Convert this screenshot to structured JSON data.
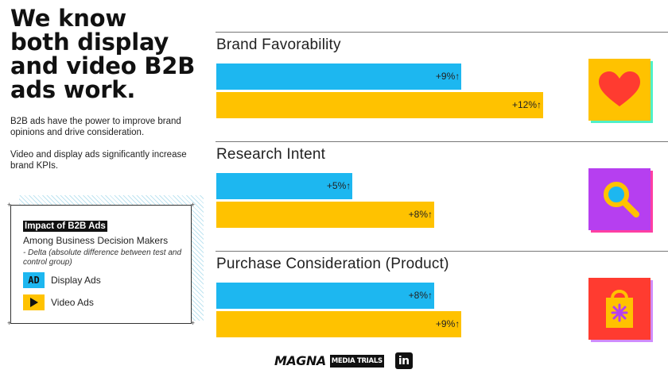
{
  "headline": {
    "lines": [
      "We know",
      "both display",
      "and video B2B",
      "ads work."
    ]
  },
  "body": {
    "p1": "B2B ads have the power to improve brand opinions and drive consideration.",
    "p2": "Video and display ads significantly increase brand KPIs."
  },
  "legend": {
    "title": "Impact of B2B Ads",
    "subtitle": "Among Business Decision Makers",
    "note": "- Delta (absolute difference between test and control group)",
    "display_badge": "AD",
    "display_label": "Display Ads",
    "video_label": "Video Ads"
  },
  "chart_data": {
    "type": "bar",
    "orientation": "horizontal",
    "unit": "%",
    "series_names": [
      "Display Ads",
      "Video Ads"
    ],
    "series_colors": [
      "#1db7f0",
      "#ffc200"
    ],
    "sections": [
      {
        "title": "Brand Favorability",
        "display": 9,
        "video": 12,
        "display_label": "+9%↑",
        "video_label": "+12%↑",
        "icon": "heart-icon",
        "tile_color": "#ffc200",
        "shadow_color": "#4ff0c8",
        "glyph_color": "#ff3b30"
      },
      {
        "title": "Research Intent",
        "display": 5,
        "video": 8,
        "display_label": "+5%↑",
        "video_label": "+8%↑",
        "icon": "magnifier-icon",
        "tile_color": "#b63ff0",
        "shadow_color": "#ff3fa3",
        "glyph_color": "#ffc200"
      },
      {
        "title": "Purchase Consideration (Product)",
        "display": 8,
        "video": 9,
        "display_label": "+8%↑",
        "video_label": "+9%↑",
        "icon": "shopping-bag-icon",
        "tile_color": "#ff3b30",
        "shadow_color": "#d08cff",
        "glyph_color": "#ffc200"
      }
    ]
  },
  "logos": {
    "magna": "MAGNA",
    "media_trials": "MEDIA TRIALS",
    "linkedin": "in"
  }
}
